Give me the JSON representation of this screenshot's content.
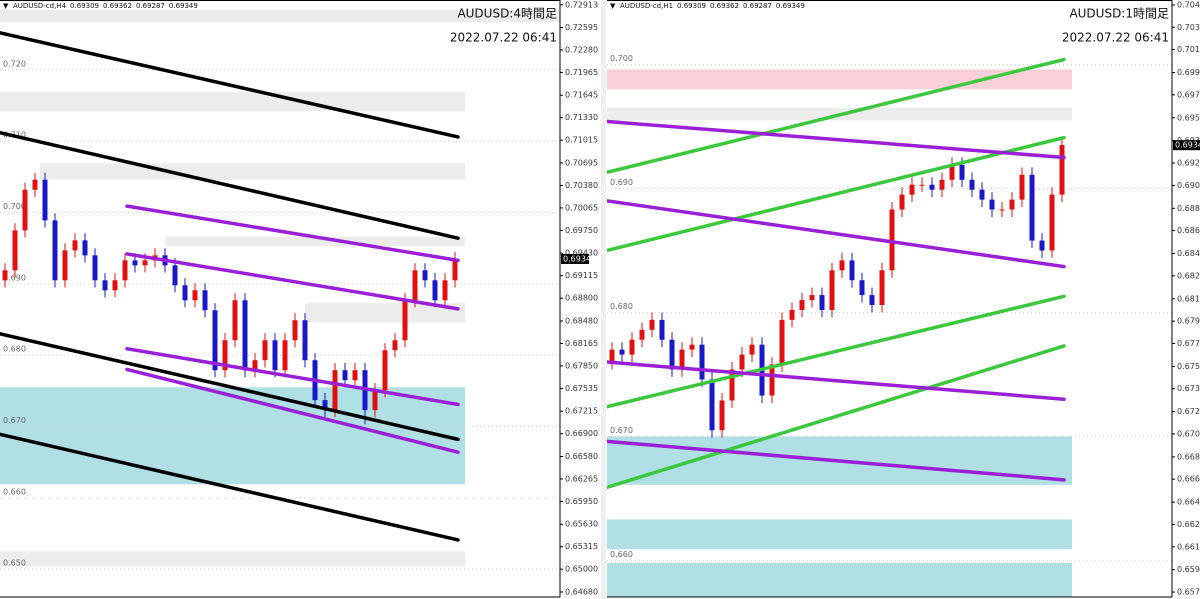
{
  "chart_data": [
    {
      "type": "candlestick",
      "header": {
        "symbol": "AUDUSD-cd,H4",
        "quote": [
          0.69309,
          0.69362,
          0.69287,
          0.69349
        ]
      },
      "title": "AUDUSD:4時間足",
      "subtitle": "2022.07.22 06:41",
      "xlim": [
        -0.5,
        55.5
      ],
      "ylim": [
        0.6461,
        0.7298
      ],
      "yticks": [
        0.72913,
        0.72595,
        {
          "value": 0.7228,
          "label": "0.72280"
        },
        0.71965,
        0.71645,
        {
          "value": 0.7133,
          "label": "0.71330"
        },
        0.71015,
        0.70695,
        {
          "value": 0.7038,
          "label": "0.70380"
        },
        0.70065,
        {
          "value": 0.6975,
          "label": "0.69750"
        },
        {
          "value": 0.6943,
          "label": "0.69430"
        },
        0.69115,
        {
          "value": 0.688,
          "label": "0.68800"
        },
        {
          "value": 0.6848,
          "label": "0.68480"
        },
        0.68165,
        {
          "value": 0.6785,
          "label": "0.67850"
        },
        0.67535,
        0.67215,
        {
          "value": 0.669,
          "label": "0.66900"
        },
        {
          "value": 0.6658,
          "label": "0.66580"
        },
        0.66265,
        {
          "value": 0.6595,
          "label": "0.65950"
        },
        {
          "value": 0.6563,
          "label": "0.65630"
        },
        0.65315,
        {
          "value": 0.65,
          "label": "0.65000"
        },
        {
          "value": 0.6468,
          "label": "0.64680"
        }
      ],
      "levels": [
        {
          "value": 0.72,
          "label": "0.720"
        },
        {
          "value": 0.71,
          "label": "0.710"
        },
        {
          "value": 0.7,
          "label": "0.700"
        },
        {
          "value": 0.69,
          "label": "0.690"
        },
        {
          "value": 0.68,
          "label": "0.680"
        },
        {
          "value": 0.67,
          "label": "0.670"
        },
        {
          "value": 0.66,
          "label": "0.660"
        },
        {
          "value": 0.65,
          "label": "0.650"
        }
      ],
      "up_color": "#e01010",
      "down_color": "#1818c8",
      "candles": {
        "open": [
          0.6905,
          0.6919,
          0.6975,
          0.7032,
          0.7046,
          0.6989,
          0.6905,
          0.6947,
          0.6961,
          0.694,
          0.6905,
          0.6891,
          0.6905,
          0.6933,
          0.6926,
          0.6933,
          0.694,
          0.6926,
          0.6898,
          0.6877,
          0.6891,
          0.6863,
          0.6779,
          0.6821,
          0.6877,
          0.6779,
          0.6793,
          0.6821,
          0.6779,
          0.6821,
          0.6849,
          0.6793,
          0.6737,
          0.6723,
          0.6779,
          0.6765,
          0.6779,
          0.6723,
          0.6751,
          0.6807,
          0.6821,
          0.6877,
          0.6919,
          0.6905,
          0.6877,
          0.6905
        ],
        "high": [
          0.6929,
          0.6985,
          0.7042,
          0.7056,
          0.7056,
          0.6999,
          0.6957,
          0.6971,
          0.6971,
          0.695,
          0.6915,
          0.6915,
          0.6943,
          0.6943,
          0.6943,
          0.695,
          0.695,
          0.6936,
          0.6908,
          0.6901,
          0.6901,
          0.6873,
          0.6831,
          0.6887,
          0.6887,
          0.6803,
          0.6831,
          0.6831,
          0.6831,
          0.6859,
          0.6859,
          0.6803,
          0.6747,
          0.6789,
          0.6789,
          0.6789,
          0.6789,
          0.6761,
          0.6817,
          0.6831,
          0.6887,
          0.6929,
          0.6929,
          0.6915,
          0.6915,
          0.6945
        ],
        "low": [
          0.6895,
          0.6909,
          0.6965,
          0.7022,
          0.6979,
          0.6895,
          0.6895,
          0.6937,
          0.693,
          0.6895,
          0.6881,
          0.6881,
          0.6895,
          0.6916,
          0.6916,
          0.6923,
          0.6916,
          0.6888,
          0.6867,
          0.6867,
          0.6853,
          0.6769,
          0.6769,
          0.6811,
          0.6769,
          0.6769,
          0.6783,
          0.6769,
          0.6769,
          0.6811,
          0.6783,
          0.6727,
          0.6713,
          0.6713,
          0.6755,
          0.6755,
          0.6703,
          0.6713,
          0.6741,
          0.6797,
          0.6811,
          0.6867,
          0.6895,
          0.6867,
          0.6867,
          0.6895
        ],
        "close": [
          0.6919,
          0.6975,
          0.7032,
          0.7046,
          0.6989,
          0.6905,
          0.6947,
          0.6961,
          0.694,
          0.6905,
          0.6891,
          0.6905,
          0.6933,
          0.6926,
          0.6933,
          0.694,
          0.6926,
          0.6898,
          0.6877,
          0.6891,
          0.6863,
          0.6779,
          0.6821,
          0.6877,
          0.6779,
          0.6793,
          0.6821,
          0.6779,
          0.6821,
          0.6849,
          0.6793,
          0.6737,
          0.6723,
          0.6779,
          0.6765,
          0.6779,
          0.6723,
          0.6751,
          0.6807,
          0.6821,
          0.6877,
          0.6919,
          0.6905,
          0.6877,
          0.6905,
          0.6935
        ]
      },
      "zones": [
        {
          "color": "#ececec",
          "x": [
            -0.5,
            55.5
          ],
          "y": [
            0.7267,
            0.7284
          ]
        },
        {
          "color": "#ececec",
          "x": [
            -0.5,
            46
          ],
          "y": [
            0.7142,
            0.7169
          ]
        },
        {
          "color": "#ececec",
          "x": [
            3.5,
            46
          ],
          "y": [
            0.7046,
            0.7069
          ]
        },
        {
          "color": "#ececec",
          "x": [
            16,
            46
          ],
          "y": [
            0.6953,
            0.6966
          ]
        },
        {
          "color": "#ececec",
          "x": [
            30,
            46
          ],
          "y": [
            0.6846,
            0.6873
          ]
        },
        {
          "color": "#b0dfe5",
          "x": [
            -0.5,
            46
          ],
          "y": [
            0.6619,
            0.6755
          ]
        },
        {
          "color": "#ececec",
          "x": [
            -0.5,
            46
          ],
          "y": [
            0.6504,
            0.6525
          ]
        }
      ],
      "trendlines": [
        {
          "color": "#000000",
          "x": [
            -0.5,
            45.3
          ],
          "y": [
            0.7252,
            0.7106
          ]
        },
        {
          "color": "#000000",
          "x": [
            -0.5,
            45.3
          ],
          "y": [
            0.7112,
            0.6964
          ]
        },
        {
          "color": "#000000",
          "x": [
            -0.5,
            45.3
          ],
          "y": [
            0.683,
            0.6682
          ]
        },
        {
          "color": "#000000",
          "x": [
            -0.5,
            45.3
          ],
          "y": [
            0.6689,
            0.6541
          ]
        },
        {
          "color": "#9a1fd6",
          "x": [
            12.2,
            45.3
          ],
          "y": [
            0.7009,
            0.6933
          ]
        },
        {
          "color": "#9a1fd6",
          "x": [
            12.2,
            45.3
          ],
          "y": [
            0.6942,
            0.6865
          ]
        },
        {
          "color": "#9a1fd6",
          "x": [
            12.2,
            45.3
          ],
          "y": [
            0.6809,
            0.6731
          ]
        },
        {
          "color": "#9a1fd6",
          "x": [
            12.2,
            45.3
          ],
          "y": [
            0.678,
            0.6664
          ]
        }
      ]
    },
    {
      "type": "candlestick",
      "header": {
        "symbol": "AUDUSD-cd,H1",
        "quote": [
          0.69309,
          0.69362,
          0.69287,
          0.69349
        ]
      },
      "title": "AUDUSD:1時間足",
      "subtitle": "2022.07.22 06:41",
      "xlim": [
        -0.5,
        56
      ],
      "ylim": [
        0.65705,
        0.7052
      ],
      "yticks": [
        {
          "value": 0.7048,
          "label": "0.70480"
        },
        {
          "value": 0.703,
          "label": "0.70300"
        },
        {
          "value": 0.7012,
          "label": "0.70120"
        },
        0.69935,
        0.69755,
        {
          "value": 0.6957,
          "label": "0.69570"
        },
        0.69385,
        0.69205,
        0.69025,
        {
          "value": 0.6884,
          "label": "0.68840"
        },
        {
          "value": 0.6866,
          "label": "0.68660"
        },
        0.68475,
        0.68295,
        {
          "value": 0.6811,
          "label": "0.68110"
        },
        {
          "value": 0.6793,
          "label": "0.67930"
        },
        {
          "value": 0.6775,
          "label": "0.67750"
        },
        0.67565,
        0.67385,
        {
          "value": 0.672,
          "label": "0.67200"
        },
        {
          "value": 0.6702,
          "label": "0.67020"
        },
        0.66835,
        0.66655,
        {
          "value": 0.6647,
          "label": "0.66470"
        },
        {
          "value": 0.6629,
          "label": "0.66290"
        },
        {
          "value": 0.6611,
          "label": "0.66110"
        },
        0.65925,
        0.65745
      ],
      "levels": [
        {
          "value": 0.7,
          "label": "0.700"
        },
        {
          "value": 0.69,
          "label": "0.690"
        },
        {
          "value": 0.68,
          "label": "0.680"
        },
        {
          "value": 0.67,
          "label": "0.670"
        },
        {
          "value": 0.66,
          "label": "0.660"
        }
      ],
      "up_color": "#e01010",
      "down_color": "#1818c8",
      "candles": {
        "open": [
          0.676,
          0.677,
          0.6766,
          0.6778,
          0.6786,
          0.6794,
          0.6778,
          0.6754,
          0.677,
          0.6774,
          0.6746,
          0.6705,
          0.6729,
          0.6754,
          0.6766,
          0.6774,
          0.6733,
          0.6758,
          0.6794,
          0.6802,
          0.681,
          0.6814,
          0.6802,
          0.6834,
          0.6842,
          0.6826,
          0.6814,
          0.6806,
          0.6834,
          0.6883,
          0.6895,
          0.6903,
          0.6903,
          0.6899,
          0.6907,
          0.6919,
          0.6907,
          0.6899,
          0.6891,
          0.6883,
          0.6883,
          0.6891,
          0.6911,
          0.6858,
          0.685,
          0.6895
        ],
        "high": [
          0.6776,
          0.6776,
          0.6784,
          0.6792,
          0.68,
          0.68,
          0.6784,
          0.6776,
          0.678,
          0.678,
          0.6752,
          0.6735,
          0.676,
          0.6772,
          0.678,
          0.678,
          0.6764,
          0.68,
          0.6808,
          0.6816,
          0.682,
          0.682,
          0.684,
          0.6848,
          0.6848,
          0.6832,
          0.682,
          0.684,
          0.6889,
          0.6901,
          0.6909,
          0.6909,
          0.6909,
          0.6913,
          0.6925,
          0.6925,
          0.6913,
          0.6905,
          0.6897,
          0.6889,
          0.6897,
          0.6917,
          0.6917,
          0.6864,
          0.6901,
          0.6941
        ],
        "low": [
          0.6754,
          0.676,
          0.676,
          0.6772,
          0.678,
          0.6772,
          0.6748,
          0.6748,
          0.6764,
          0.674,
          0.6699,
          0.6699,
          0.6723,
          0.6748,
          0.676,
          0.6727,
          0.6727,
          0.6752,
          0.6788,
          0.6796,
          0.6804,
          0.6796,
          0.6796,
          0.6828,
          0.682,
          0.6808,
          0.68,
          0.68,
          0.6828,
          0.6877,
          0.6889,
          0.6897,
          0.6893,
          0.6893,
          0.6901,
          0.6901,
          0.6893,
          0.6885,
          0.6877,
          0.6877,
          0.6877,
          0.6885,
          0.6852,
          0.6844,
          0.6844,
          0.6889
        ],
        "close": [
          0.677,
          0.6766,
          0.6778,
          0.6786,
          0.6794,
          0.6778,
          0.6754,
          0.677,
          0.6774,
          0.6746,
          0.6705,
          0.6729,
          0.6754,
          0.6766,
          0.6774,
          0.6733,
          0.6758,
          0.6794,
          0.6802,
          0.681,
          0.6814,
          0.6802,
          0.6834,
          0.6842,
          0.6826,
          0.6814,
          0.6806,
          0.6834,
          0.6883,
          0.6895,
          0.6903,
          0.6903,
          0.6899,
          0.6907,
          0.6919,
          0.6907,
          0.6899,
          0.6891,
          0.6883,
          0.6883,
          0.6891,
          0.6911,
          0.6858,
          0.685,
          0.6895,
          0.6935
        ]
      },
      "zones": [
        {
          "color": "#fcd0d8",
          "x": [
            -0.5,
            46
          ],
          "y": [
            0.698,
            0.6996
          ]
        },
        {
          "color": "#ececec",
          "x": [
            -0.5,
            46
          ],
          "y": [
            0.6955,
            0.6965
          ]
        },
        {
          "color": "#b0dfe5",
          "x": [
            -0.5,
            46
          ],
          "y": [
            0.6661,
            0.67
          ]
        },
        {
          "color": "#b0dfe5",
          "x": [
            -0.5,
            46
          ],
          "y": [
            0.6609,
            0.6633
          ]
        },
        {
          "color": "#b0dfe5",
          "x": [
            -0.5,
            46
          ],
          "y": [
            0.65705,
            0.6598
          ]
        }
      ],
      "trendlines": [
        {
          "color": "#3cc83c",
          "x": [
            -0.5,
            45.2
          ],
          "y": [
            0.6913,
            0.7004
          ]
        },
        {
          "color": "#3cc83c",
          "x": [
            -0.5,
            45.2
          ],
          "y": [
            0.685,
            0.6941
          ]
        },
        {
          "color": "#3cc83c",
          "x": [
            -0.5,
            45.2
          ],
          "y": [
            0.6724,
            0.6813
          ]
        },
        {
          "color": "#3cc83c",
          "x": [
            -0.5,
            45.2
          ],
          "y": [
            0.6659,
            0.6773
          ]
        },
        {
          "color": "#9a1fd6",
          "x": [
            -0.5,
            45.2
          ],
          "y": [
            0.6954,
            0.6925
          ]
        },
        {
          "color": "#9a1fd6",
          "x": [
            -0.5,
            45.2
          ],
          "y": [
            0.689,
            0.6837
          ]
        },
        {
          "color": "#9a1fd6",
          "x": [
            -0.5,
            45.2
          ],
          "y": [
            0.676,
            0.673
          ]
        },
        {
          "color": "#9a1fd6",
          "x": [
            -0.5,
            45.2
          ],
          "y": [
            0.6696,
            0.6665
          ]
        }
      ]
    }
  ]
}
